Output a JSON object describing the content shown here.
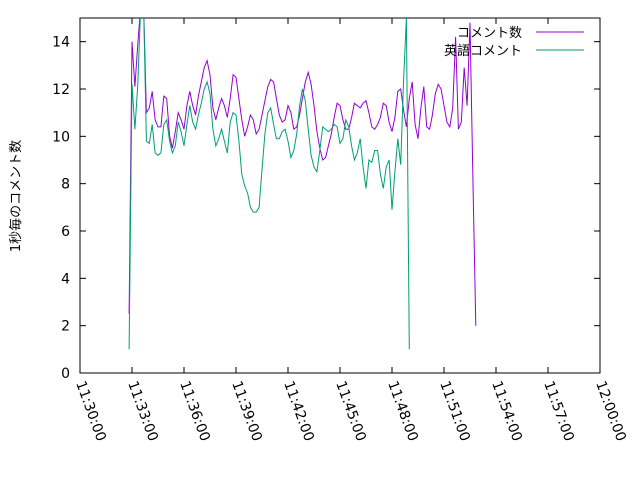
{
  "chart_data": {
    "type": "line",
    "title": "",
    "xlabel": "",
    "ylabel": "1秒毎のコメント数",
    "xlim": [
      "11:30:00",
      "12:00:00"
    ],
    "ylim": [
      0,
      15
    ],
    "xticks": [
      "11:30:00",
      "11:33:00",
      "11:36:00",
      "11:39:00",
      "11:42:00",
      "11:45:00",
      "11:48:00",
      "11:51:00",
      "11:54:00",
      "11:57:00",
      "12:00:00"
    ],
    "yticks": [
      0,
      2,
      4,
      6,
      8,
      10,
      12,
      14
    ],
    "grid": false,
    "legend": "top-right",
    "series": [
      {
        "name": "コメント数",
        "color": "#9400d3",
        "points": [
          [
            "11:32:50",
            2.5
          ],
          [
            "11:33:00",
            14.0
          ],
          [
            "11:33:10",
            12.1
          ],
          [
            "11:33:20",
            13.9
          ],
          [
            "11:33:30",
            15.5
          ],
          [
            "11:33:40",
            15.5
          ],
          [
            "11:33:50",
            11.0
          ],
          [
            "11:34:00",
            11.2
          ],
          [
            "11:34:10",
            11.9
          ],
          [
            "11:34:20",
            10.7
          ],
          [
            "11:34:30",
            10.4
          ],
          [
            "11:34:40",
            10.4
          ],
          [
            "11:34:50",
            11.7
          ],
          [
            "11:35:00",
            11.6
          ],
          [
            "11:35:10",
            10.0
          ],
          [
            "11:35:20",
            9.5
          ],
          [
            "11:35:30",
            10.2
          ],
          [
            "11:35:40",
            11.0
          ],
          [
            "11:35:50",
            10.7
          ],
          [
            "11:36:00",
            10.3
          ],
          [
            "11:36:10",
            11.3
          ],
          [
            "11:36:20",
            11.9
          ],
          [
            "11:36:30",
            11.3
          ],
          [
            "11:36:40",
            10.9
          ],
          [
            "11:36:50",
            11.7
          ],
          [
            "11:37:00",
            12.3
          ],
          [
            "11:37:10",
            12.9
          ],
          [
            "11:37:20",
            13.2
          ],
          [
            "11:37:30",
            12.6
          ],
          [
            "11:37:40",
            11.2
          ],
          [
            "11:37:50",
            10.7
          ],
          [
            "11:38:00",
            11.2
          ],
          [
            "11:38:10",
            11.6
          ],
          [
            "11:38:20",
            11.3
          ],
          [
            "11:38:30",
            10.8
          ],
          [
            "11:38:40",
            11.6
          ],
          [
            "11:38:50",
            12.6
          ],
          [
            "11:39:00",
            12.5
          ],
          [
            "11:39:10",
            11.6
          ],
          [
            "11:39:20",
            10.7
          ],
          [
            "11:39:30",
            10.0
          ],
          [
            "11:39:40",
            10.4
          ],
          [
            "11:39:50",
            10.9
          ],
          [
            "11:40:00",
            10.7
          ],
          [
            "11:40:10",
            10.1
          ],
          [
            "11:40:20",
            10.3
          ],
          [
            "11:40:30",
            10.9
          ],
          [
            "11:40:40",
            11.5
          ],
          [
            "11:40:50",
            12.1
          ],
          [
            "11:41:00",
            12.4
          ],
          [
            "11:41:10",
            12.3
          ],
          [
            "11:41:20",
            11.6
          ],
          [
            "11:41:30",
            10.9
          ],
          [
            "11:41:40",
            10.6
          ],
          [
            "11:41:50",
            10.7
          ],
          [
            "11:42:00",
            11.3
          ],
          [
            "11:42:10",
            11.0
          ],
          [
            "11:42:20",
            10.3
          ],
          [
            "11:42:30",
            10.4
          ],
          [
            "11:42:40",
            10.9
          ],
          [
            "11:42:50",
            11.6
          ],
          [
            "11:43:00",
            12.3
          ],
          [
            "11:43:10",
            12.7
          ],
          [
            "11:43:20",
            12.2
          ],
          [
            "11:43:30",
            11.3
          ],
          [
            "11:43:40",
            10.2
          ],
          [
            "11:43:50",
            9.5
          ],
          [
            "11:44:00",
            9.0
          ],
          [
            "11:44:10",
            9.1
          ],
          [
            "11:44:20",
            9.6
          ],
          [
            "11:44:30",
            10.1
          ],
          [
            "11:44:40",
            10.8
          ],
          [
            "11:44:50",
            11.4
          ],
          [
            "11:45:00",
            11.3
          ],
          [
            "11:45:10",
            10.7
          ],
          [
            "11:45:20",
            10.3
          ],
          [
            "11:45:30",
            10.3
          ],
          [
            "11:45:40",
            10.8
          ],
          [
            "11:45:50",
            11.4
          ],
          [
            "11:46:00",
            11.3
          ],
          [
            "11:46:10",
            11.2
          ],
          [
            "11:46:20",
            11.4
          ],
          [
            "11:46:30",
            11.5
          ],
          [
            "11:46:40",
            11.0
          ],
          [
            "11:46:50",
            10.4
          ],
          [
            "11:47:00",
            10.3
          ],
          [
            "11:47:10",
            10.5
          ],
          [
            "11:47:20",
            10.8
          ],
          [
            "11:47:30",
            11.4
          ],
          [
            "11:47:40",
            11.3
          ],
          [
            "11:47:50",
            10.6
          ],
          [
            "11:48:00",
            10.2
          ],
          [
            "11:48:10",
            10.8
          ],
          [
            "11:48:20",
            11.9
          ],
          [
            "11:48:30",
            12.0
          ],
          [
            "11:48:40",
            11.1
          ],
          [
            "11:48:50",
            10.4
          ],
          [
            "11:49:00",
            11.6
          ],
          [
            "11:49:10",
            12.3
          ],
          [
            "11:49:20",
            10.5
          ],
          [
            "11:49:30",
            9.9
          ],
          [
            "11:49:40",
            11.2
          ],
          [
            "11:49:50",
            12.1
          ],
          [
            "11:50:00",
            10.4
          ],
          [
            "11:50:10",
            10.3
          ],
          [
            "11:50:20",
            10.9
          ],
          [
            "11:50:30",
            11.8
          ],
          [
            "11:50:40",
            12.2
          ],
          [
            "11:50:50",
            12.0
          ],
          [
            "11:51:00",
            11.3
          ],
          [
            "11:51:10",
            10.6
          ],
          [
            "11:51:20",
            10.4
          ],
          [
            "11:51:30",
            11.2
          ],
          [
            "11:51:40",
            14.2
          ],
          [
            "11:51:50",
            10.3
          ],
          [
            "11:52:00",
            10.6
          ],
          [
            "11:52:10",
            12.9
          ],
          [
            "11:52:20",
            11.3
          ],
          [
            "11:52:30",
            14.8
          ],
          [
            "11:52:40",
            8.2
          ],
          [
            "11:52:50",
            2.0
          ]
        ]
      },
      {
        "name": "英語コメント",
        "color": "#009e73",
        "points": [
          [
            "11:32:50",
            1.0
          ],
          [
            "11:33:00",
            12.2
          ],
          [
            "11:33:10",
            10.3
          ],
          [
            "11:33:20",
            12.2
          ],
          [
            "11:33:30",
            15.5
          ],
          [
            "11:33:40",
            15.5
          ],
          [
            "11:33:50",
            9.8
          ],
          [
            "11:34:00",
            9.7
          ],
          [
            "11:34:10",
            10.5
          ],
          [
            "11:34:20",
            9.3
          ],
          [
            "11:34:30",
            9.2
          ],
          [
            "11:34:40",
            9.3
          ],
          [
            "11:34:50",
            10.5
          ],
          [
            "11:35:00",
            10.7
          ],
          [
            "11:35:10",
            9.8
          ],
          [
            "11:35:20",
            9.3
          ],
          [
            "11:35:30",
            9.6
          ],
          [
            "11:35:40",
            10.6
          ],
          [
            "11:35:50",
            10.2
          ],
          [
            "11:36:00",
            9.6
          ],
          [
            "11:36:10",
            10.5
          ],
          [
            "11:36:20",
            11.3
          ],
          [
            "11:36:30",
            10.6
          ],
          [
            "11:36:40",
            10.3
          ],
          [
            "11:36:50",
            10.9
          ],
          [
            "11:37:00",
            11.4
          ],
          [
            "11:37:10",
            12.0
          ],
          [
            "11:37:20",
            12.3
          ],
          [
            "11:37:30",
            11.8
          ],
          [
            "11:37:40",
            10.3
          ],
          [
            "11:37:50",
            9.6
          ],
          [
            "11:38:00",
            9.9
          ],
          [
            "11:38:10",
            10.3
          ],
          [
            "11:38:20",
            9.8
          ],
          [
            "11:38:30",
            9.3
          ],
          [
            "11:38:40",
            10.6
          ],
          [
            "11:38:50",
            11.0
          ],
          [
            "11:39:00",
            10.9
          ],
          [
            "11:39:10",
            9.8
          ],
          [
            "11:39:20",
            8.4
          ],
          [
            "11:39:30",
            7.9
          ],
          [
            "11:39:40",
            7.6
          ],
          [
            "11:39:50",
            7.0
          ],
          [
            "11:40:00",
            6.8
          ],
          [
            "11:40:10",
            6.8
          ],
          [
            "11:40:20",
            7.0
          ],
          [
            "11:40:30",
            8.6
          ],
          [
            "11:40:40",
            10.1
          ],
          [
            "11:40:50",
            11.0
          ],
          [
            "11:41:00",
            11.2
          ],
          [
            "11:41:10",
            10.5
          ],
          [
            "11:41:20",
            9.9
          ],
          [
            "11:41:30",
            9.9
          ],
          [
            "11:41:40",
            10.2
          ],
          [
            "11:41:50",
            10.3
          ],
          [
            "11:42:00",
            9.8
          ],
          [
            "11:42:10",
            9.1
          ],
          [
            "11:42:20",
            9.4
          ],
          [
            "11:42:30",
            10.1
          ],
          [
            "11:42:40",
            11.3
          ],
          [
            "11:42:50",
            12.0
          ],
          [
            "11:43:00",
            11.5
          ],
          [
            "11:43:10",
            10.3
          ],
          [
            "11:43:20",
            9.2
          ],
          [
            "11:43:30",
            8.7
          ],
          [
            "11:43:40",
            8.5
          ],
          [
            "11:43:50",
            9.4
          ],
          [
            "11:44:00",
            10.4
          ],
          [
            "11:44:10",
            10.3
          ],
          [
            "11:44:20",
            10.2
          ],
          [
            "11:44:30",
            10.3
          ],
          [
            "11:44:40",
            10.5
          ],
          [
            "11:44:50",
            10.4
          ],
          [
            "11:45:00",
            9.7
          ],
          [
            "11:45:10",
            9.9
          ],
          [
            "11:45:20",
            10.7
          ],
          [
            "11:45:30",
            10.4
          ],
          [
            "11:45:40",
            9.6
          ],
          [
            "11:45:50",
            9.0
          ],
          [
            "11:46:00",
            9.3
          ],
          [
            "11:46:10",
            9.9
          ],
          [
            "11:46:20",
            8.7
          ],
          [
            "11:46:30",
            7.8
          ],
          [
            "11:46:40",
            9.0
          ],
          [
            "11:46:50",
            8.9
          ],
          [
            "11:47:00",
            9.4
          ],
          [
            "11:47:10",
            9.4
          ],
          [
            "11:47:20",
            8.4
          ],
          [
            "11:47:30",
            7.8
          ],
          [
            "11:47:40",
            8.7
          ],
          [
            "11:47:50",
            9.0
          ],
          [
            "11:48:00",
            6.9
          ],
          [
            "11:48:10",
            8.5
          ],
          [
            "11:48:20",
            9.9
          ],
          [
            "11:48:30",
            8.8
          ],
          [
            "11:48:40",
            12.4
          ],
          [
            "11:48:50",
            15.0
          ],
          [
            "11:49:00",
            1.0
          ]
        ]
      }
    ]
  }
}
